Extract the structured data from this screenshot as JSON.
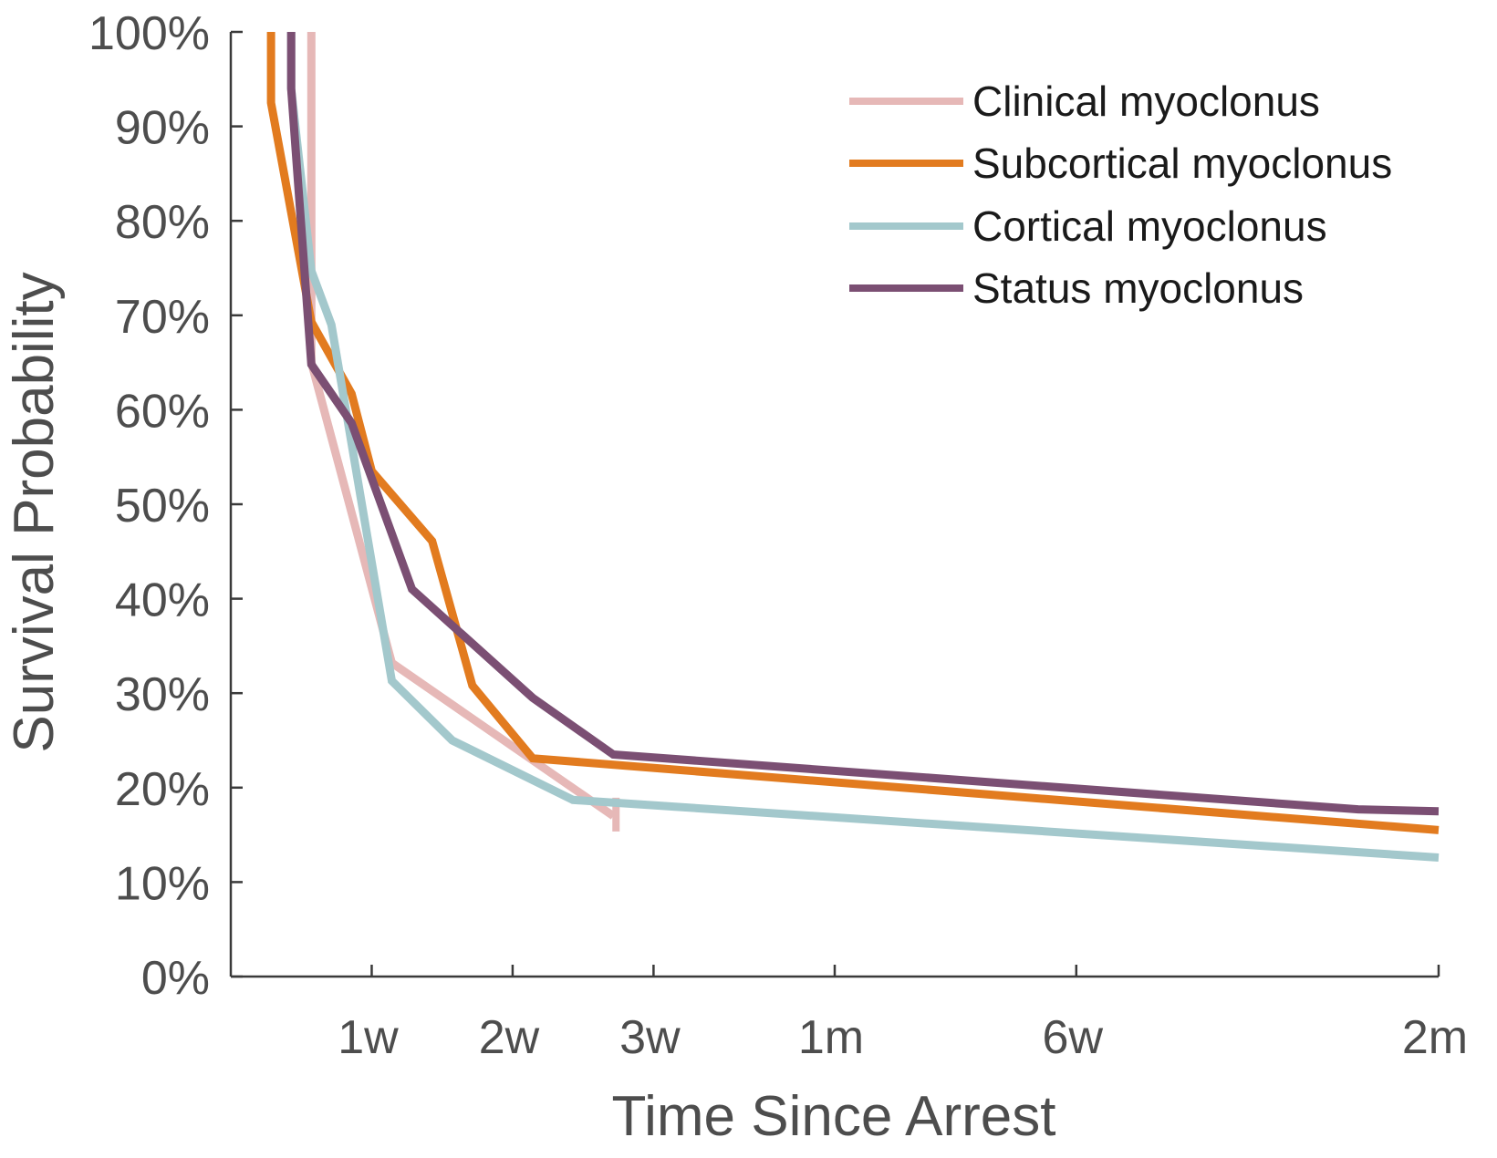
{
  "chart_data": {
    "type": "line",
    "title": "",
    "xlabel": "Time Since Arrest",
    "ylabel": "Survival Probability",
    "xlim_days": [
      0,
      60
    ],
    "ylim": [
      0,
      100
    ],
    "grid": false,
    "legend_position": "top-right",
    "x_ticks": [
      {
        "value": 7,
        "label": "1w"
      },
      {
        "value": 14,
        "label": "2w"
      },
      {
        "value": 21,
        "label": "3w"
      },
      {
        "value": 30,
        "label": "1m"
      },
      {
        "value": 42,
        "label": "6w"
      },
      {
        "value": 60,
        "label": "2m"
      }
    ],
    "y_ticks": [
      {
        "value": 0,
        "label": "0%"
      },
      {
        "value": 10,
        "label": "10%"
      },
      {
        "value": 20,
        "label": "20%"
      },
      {
        "value": 30,
        "label": "30%"
      },
      {
        "value": 40,
        "label": "40%"
      },
      {
        "value": 50,
        "label": "50%"
      },
      {
        "value": 60,
        "label": "60%"
      },
      {
        "value": 70,
        "label": "70%"
      },
      {
        "value": 80,
        "label": "80%"
      },
      {
        "value": 90,
        "label": "90%"
      },
      {
        "value": 100,
        "label": "100%"
      }
    ],
    "series": [
      {
        "name": "Clinical myoclonus",
        "color": "#e6b8b7",
        "x": [
          4,
          4,
          8,
          19
        ],
        "y": [
          100,
          65,
          33.2,
          17.0
        ],
        "censor_marks": [
          {
            "x": 19,
            "y": 17.0
          }
        ]
      },
      {
        "name": "Subcortical myoclonus",
        "color": "#e27b1f",
        "x": [
          2,
          2,
          4,
          6,
          7,
          10,
          12,
          15,
          60
        ],
        "y": [
          100,
          92.5,
          69.3,
          61.7,
          53.5,
          46.1,
          30.8,
          23.1,
          15.5
        ]
      },
      {
        "name": "Cortical myoclonus",
        "color": "#a3c8cc",
        "x": [
          3,
          3,
          4,
          5,
          8,
          11,
          17,
          60
        ],
        "y": [
          100,
          94,
          74.7,
          69.0,
          31.3,
          25.0,
          18.7,
          12.6
        ]
      },
      {
        "name": "Status myoclonus",
        "color": "#7b4f73",
        "x": [
          3,
          3,
          4,
          6,
          9,
          15,
          19,
          56,
          60
        ],
        "y": [
          100,
          94,
          64.8,
          58.6,
          41.0,
          29.5,
          23.5,
          17.7,
          17.5
        ]
      }
    ]
  }
}
